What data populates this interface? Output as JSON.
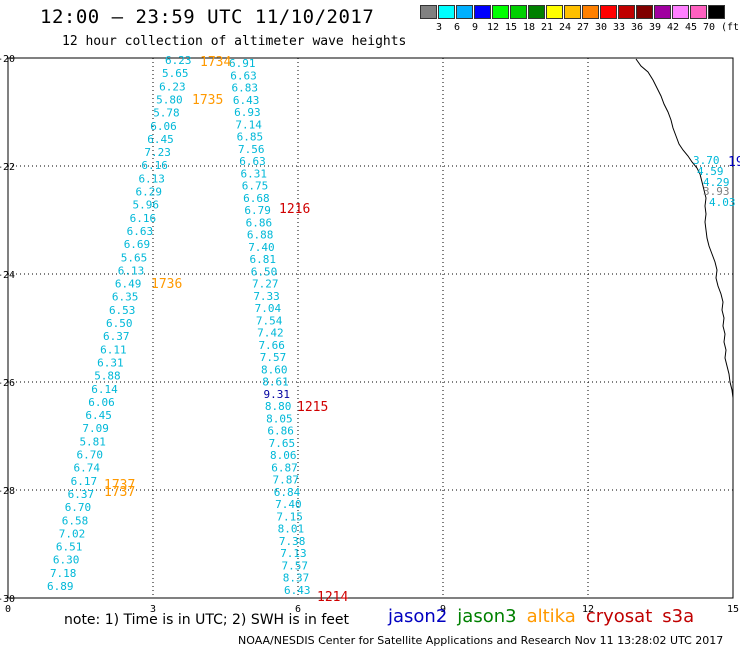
{
  "header": {
    "title": "12:00 — 23:59 UTC 11/10/2017",
    "subtitle": "12 hour collection of altimeter wave heights"
  },
  "legend": {
    "colors": [
      "#808080",
      "#00ffff",
      "#00b0ff",
      "#0000ff",
      "#00ff00",
      "#00d000",
      "#008000",
      "#ffff00",
      "#ffc000",
      "#ff8000",
      "#ff0000",
      "#c00000",
      "#800000",
      "#a000a0",
      "#ff80ff",
      "#ff60c0",
      "#000000"
    ],
    "labels": [
      "3",
      "6",
      "9",
      "12",
      "15",
      "18",
      "21",
      "24",
      "27",
      "30",
      "33",
      "36",
      "39",
      "42",
      "45",
      "70",
      "(ft)"
    ]
  },
  "axes": {
    "lat_labels": [
      "-20",
      "-22",
      "-24",
      "-26",
      "-28",
      "-30"
    ],
    "lon_labels": [
      "0",
      "3",
      "6",
      "9",
      "12",
      "15"
    ]
  },
  "tracks": {
    "track_a": {
      "values": [
        "6.23",
        "5.65",
        "6.23",
        "5.80",
        "5.78",
        "6.06",
        "6.45",
        "7.23",
        "6.16",
        "6.13",
        "6.29",
        "5.96",
        "6.16",
        "6.63",
        "6.69",
        "5.65",
        "6.13",
        "6.49",
        "6.35",
        "6.53",
        "6.50",
        "6.37",
        "6.11",
        "6.31",
        "5.88",
        "6.14",
        "6.06",
        "6.45",
        "7.09",
        "5.81",
        "6.70",
        "6.74",
        "6.17",
        "6.37",
        "6.70",
        "6.58",
        "7.02",
        "6.51",
        "6.30",
        "7.18",
        "6.89"
      ]
    },
    "track_b": {
      "values": [
        "6.91",
        "6.63",
        "6.83",
        "6.43",
        "6.93",
        "7.14",
        "6.85",
        "7.56",
        "6.63",
        "6.31",
        "6.75",
        "6.68",
        "6.79",
        "6.86",
        "6.88",
        "7.40",
        "6.81",
        "6.50",
        "7.27",
        "7.33",
        "7.04",
        "7.54",
        "7.42",
        "7.66",
        "7.57",
        "8.60",
        "8.61",
        "9.31",
        "8.80",
        "8.05",
        "6.86",
        "7.65",
        "8.06",
        "6.87",
        "7.87",
        "6.84",
        "7.40",
        "7.15",
        "8.01",
        "7.38",
        "7.13",
        "7.57",
        "8.37",
        "6.43"
      ]
    },
    "track_c": {
      "values": [
        "3.70",
        "4.59",
        "4.29",
        "3.93",
        "4.03"
      ]
    }
  },
  "pass_labels": {
    "p1734": "1734",
    "p1735": "1735",
    "p1736": "1736",
    "p1737a": "1737",
    "p1737b": "1737",
    "p1216": "1216",
    "p1215": "1215",
    "p1214": "1214",
    "p19": "19"
  },
  "satellites": [
    "jason2",
    "jason3",
    "altika",
    "cryosat",
    "s3a"
  ],
  "satellite_colors": [
    "#0000c0",
    "#008000",
    "#ff9900",
    "#c00000",
    "#c00000"
  ],
  "value_colors": {
    "cyan": "#00b8d8",
    "blue": "#0000a0",
    "red": "#d00000",
    "orange": "#ff9900",
    "gray": "#808080"
  },
  "footer": {
    "note": "note:  1) Time is in UTC;  2) SWH is in feet",
    "credit": "NOAA/NESDIS Center for Satellite Applications and Research     Nov 11 13:28:02 UTC 2017"
  }
}
